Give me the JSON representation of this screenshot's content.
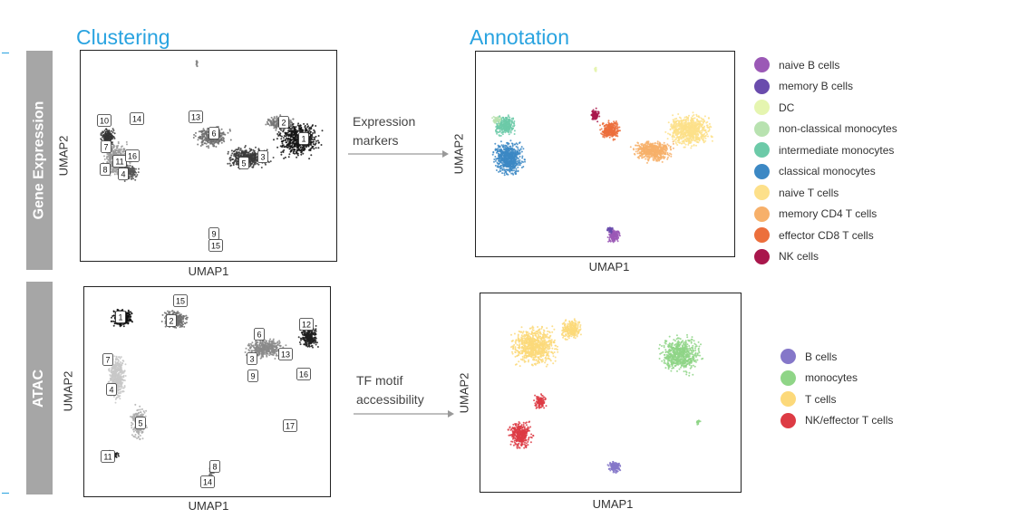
{
  "headings": {
    "clustering": "Clustering",
    "annotation": "Annotation"
  },
  "rows": {
    "gene": "Gene Expression",
    "atac": "ATAC"
  },
  "axes": {
    "x": "UMAP1",
    "y": "UMAP2"
  },
  "arrows": {
    "gene": [
      "Expression",
      "markers"
    ],
    "atac": [
      "TF motif",
      "accessibility"
    ]
  },
  "gene_clusters": [
    "1",
    "2",
    "3",
    "4",
    "5",
    "6",
    "7",
    "8",
    "9",
    "10",
    "11",
    "13",
    "14",
    "15",
    "16"
  ],
  "atac_clusters": [
    "1",
    "2",
    "3",
    "4",
    "5",
    "6",
    "7",
    "8",
    "9",
    "11",
    "12",
    "13",
    "14",
    "15",
    "16",
    "17"
  ],
  "gene_legend": [
    {
      "label": "naive B cells",
      "color": "#9b59b6"
    },
    {
      "label": "memory B cells",
      "color": "#6a4cad"
    },
    {
      "label": "DC",
      "color": "#e5f5b0"
    },
    {
      "label": "non-classical monocytes",
      "color": "#b8e2b0"
    },
    {
      "label": "intermediate monocytes",
      "color": "#6ccaa8"
    },
    {
      "label": "classical monocytes",
      "color": "#3c88c4"
    },
    {
      "label": "naive T cells",
      "color": "#fde08a"
    },
    {
      "label": "memory CD4 T cells",
      "color": "#f7b06a"
    },
    {
      "label": "effector CD8 T cells",
      "color": "#ec6f3c"
    },
    {
      "label": "NK cells",
      "color": "#a9174c"
    }
  ],
  "atac_legend": [
    {
      "label": "B cells",
      "color": "#8577c9"
    },
    {
      "label": "monocytes",
      "color": "#8fd587"
    },
    {
      "label": "T cells",
      "color": "#fcd97a"
    },
    {
      "label": "NK/effector T cells",
      "color": "#dd3b44"
    }
  ]
}
